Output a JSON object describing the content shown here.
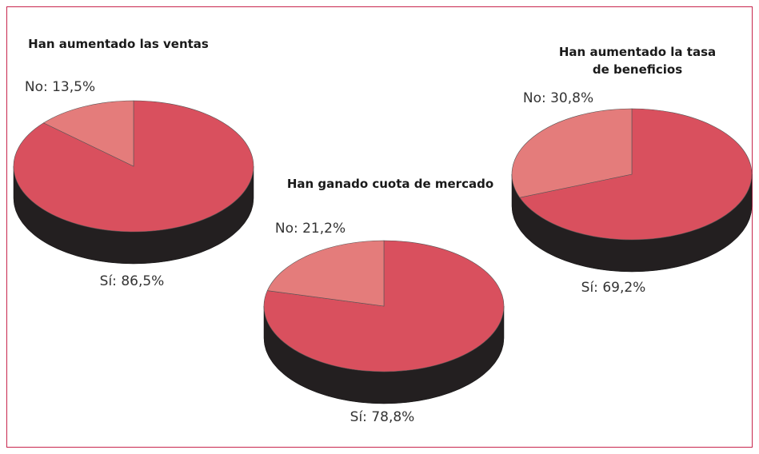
{
  "chart_data": [
    {
      "type": "pie",
      "title": "Han aumentado las ventas",
      "values": [
        86.5,
        13.5
      ],
      "value_labels": [
        "Sí: 86,5%",
        "No: 13,5%"
      ],
      "colors": [
        "#d9505e",
        "#e47c7b"
      ]
    },
    {
      "type": "pie",
      "title": "Han ganado cuota de mercado",
      "values": [
        78.8,
        21.2
      ],
      "value_labels": [
        "Sí: 78,8%",
        "No: 21,2%"
      ],
      "colors": [
        "#d9505e",
        "#e47c7b"
      ]
    },
    {
      "type": "pie",
      "title": "Han aumentado la tasa de beneficios",
      "values": [
        69.2,
        30.8
      ],
      "value_labels": [
        "Sí: 69,2%",
        "No: 30,8%"
      ],
      "colors": [
        "#d9505e",
        "#e47c7b"
      ]
    }
  ]
}
